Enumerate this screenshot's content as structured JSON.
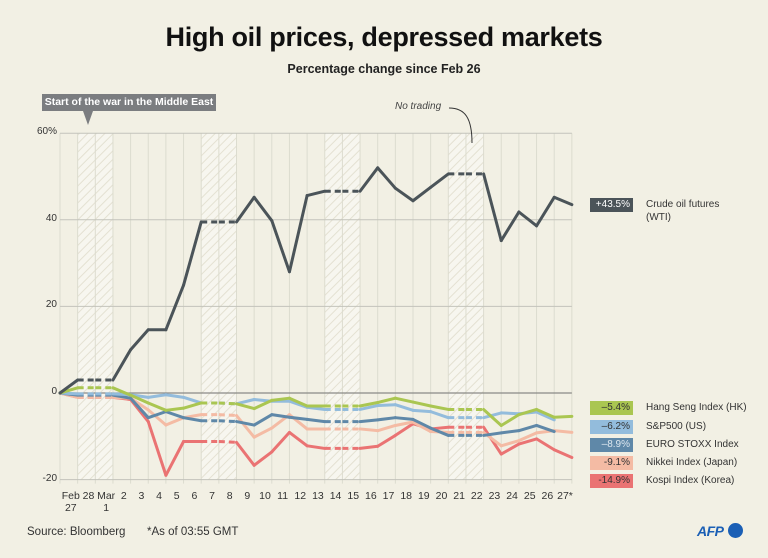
{
  "header": {
    "title": "High oil prices, depressed markets",
    "subtitle": "Percentage change since Feb 26"
  },
  "annotations": {
    "war_start": "Start of the war in the Middle East",
    "no_trading": "No trading"
  },
  "footer": {
    "source": "Source: Bloomberg",
    "footnote": "*As of 03:55 GMT",
    "logo": "AFP"
  },
  "chart_data": {
    "type": "line",
    "title": "High oil prices, depressed markets",
    "subtitle": "Percentage change since Feb 26",
    "x_tick_labels": [
      "Feb\n27",
      "28",
      "Mar\n1",
      "2",
      "3",
      "4",
      "5",
      "6",
      "7",
      "8",
      "9",
      "10",
      "11",
      "12",
      "13",
      "14",
      "15",
      "16",
      "17",
      "18",
      "19",
      "20",
      "21",
      "22",
      "23",
      "24",
      "25",
      "26",
      "27*"
    ],
    "y_ticks": [
      60,
      40,
      20,
      0,
      -20
    ],
    "y_tick_labels": [
      "60%",
      "40",
      "20",
      "0",
      "-20"
    ],
    "ylim": [
      -20,
      60
    ],
    "grid": true,
    "no_trading_periods": [
      [
        1,
        3
      ],
      [
        8,
        10
      ],
      [
        15,
        17
      ],
      [
        22,
        24
      ]
    ],
    "series": [
      {
        "name": "Crude oil futures (WTI)",
        "final_label": "+43.5%",
        "color": "#4b5459",
        "label_text_color": "#ffffff",
        "values": [
          0,
          3,
          3,
          3,
          10,
          14.6,
          14.6,
          24.9,
          39.5,
          39.5,
          39.5,
          45.2,
          39.8,
          28,
          45.6,
          46.6,
          46.6,
          46.6,
          52,
          47.3,
          44.4,
          47.5,
          50.6,
          50.6,
          50.6,
          35.2,
          41.8,
          38.6,
          45.2,
          43.5
        ]
      },
      {
        "name": "Hang Seng Index (HK)",
        "final_label": "–5.4%",
        "color": "#aac651",
        "label_text_color": "#333333",
        "values": [
          0,
          1.2,
          1.2,
          1.2,
          -0.5,
          -2.3,
          -4,
          -3.5,
          -2.3,
          -2.3,
          -2.5,
          -3.6,
          -1.7,
          -1.2,
          -3,
          -3,
          -3,
          -3,
          -2.2,
          -1.2,
          -2.1,
          -3,
          -3.8,
          -3.8,
          -3.8,
          -7.5,
          -5,
          -3.8,
          -5.6,
          -5.4
        ]
      },
      {
        "name": "S&P500 (US)",
        "final_label": "–6.2%",
        "color": "#93bcdc",
        "label_text_color": "#333333",
        "values": [
          0,
          -0.2,
          -0.2,
          -0.2,
          -0.4,
          -1,
          -0.4,
          -1,
          -2.3,
          -2.3,
          -2.5,
          -1.5,
          -1.9,
          -1.9,
          -3.3,
          -3.8,
          -3.8,
          -3.8,
          -2.9,
          -2.7,
          -4,
          -4.3,
          -5.7,
          -5.7,
          -5.7,
          -4.6,
          -4.8,
          -4.4,
          -6.2
        ]
      },
      {
        "name": "EURO STOXX Index",
        "final_label": "–8.9%",
        "color": "#5f88a8",
        "label_text_color": "#dde7ef",
        "values": [
          0,
          -0.5,
          -0.5,
          -0.5,
          -1.2,
          -5.7,
          -4.3,
          -5.7,
          -6.4,
          -6.4,
          -6.6,
          -7.4,
          -5,
          -5.6,
          -6.1,
          -6.6,
          -6.6,
          -6.6,
          -6.2,
          -5.7,
          -6.1,
          -8.1,
          -9.8,
          -9.8,
          -9.8,
          -9.2,
          -8.7,
          -7.5,
          -8.9
        ]
      },
      {
        "name": "Nikkei Index (Japan)",
        "final_label": "-9.1%",
        "color": "#f4bba4",
        "label_text_color": "#333333",
        "values": [
          0,
          -1,
          -1,
          -1,
          -1.2,
          -3.9,
          -7.4,
          -5.7,
          -5,
          -5,
          -5.2,
          -10.2,
          -8.1,
          -5,
          -8.3,
          -8.3,
          -8.3,
          -8.3,
          -8.7,
          -7.5,
          -6.7,
          -8.9,
          -9.1,
          -9.1,
          -9.1,
          -12.2,
          -11,
          -9.2,
          -8.7,
          -9.1
        ]
      },
      {
        "name": "Kospi Index (Korea)",
        "final_label": "-14.9%",
        "color": "#ea7373",
        "label_text_color": "#333333",
        "values": [
          0,
          -1,
          -1,
          -1,
          -1.5,
          -6.6,
          -19,
          -11.2,
          -11.2,
          -11.2,
          -11.4,
          -16.7,
          -13.6,
          -9.1,
          -12.2,
          -12.8,
          -12.8,
          -12.8,
          -12.3,
          -9.8,
          -7.1,
          -8.3,
          -7.9,
          -7.9,
          -7.9,
          -14.1,
          -11.8,
          -10.6,
          -13.1,
          -14.9
        ]
      }
    ]
  }
}
